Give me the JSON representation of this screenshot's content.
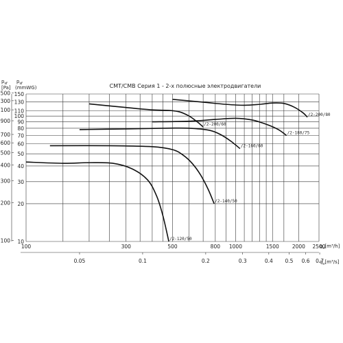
{
  "chart_data": {
    "type": "line",
    "title": "CMT/CMB  Серия 1 - 2-х полюсные электродвигатели",
    "ylabel_pa": "p",
    "ylabel_pa_sub": "sf",
    "ylabel_pa_unit": "[Pa]",
    "ylabel_mm": "p",
    "ylabel_mm_sub": "sf",
    "ylabel_mm_unit": "(mmWG)",
    "xlabel_m3h": "q",
    "xlabel_m3h_sub": "v",
    "xlabel_m3h_unit": "[m³/h]",
    "xlabel_m3s": "q",
    "xlabel_m3s_sub": "v",
    "xlabel_m3s_unit": "[m³/s]",
    "x_scale": "log",
    "xlim": [
      100,
      2500
    ],
    "x_ticks_m3h": [
      "100",
      "300",
      "500",
      "800",
      "1000",
      "1500",
      "2000",
      "2500"
    ],
    "x_ticks_m3s": [
      "0.05",
      "0.1",
      "0.2",
      "0.3",
      "0.4",
      "0.5",
      "0.6",
      "0.7"
    ],
    "y_ticks_pa": [
      "100",
      "200",
      "300",
      "400",
      "500",
      "600",
      "700",
      "900",
      "1100",
      "1300",
      "1500"
    ],
    "y_ticks_mm": [
      "10",
      "20",
      "30",
      "40",
      "50",
      "60",
      "70",
      "80",
      "90",
      "100",
      "110",
      "130",
      "150"
    ],
    "grid": true,
    "series": [
      {
        "name": "/2-120/50",
        "x": [
          100,
          150,
          200,
          260,
          320,
          380,
          420,
          450,
          480
        ],
        "y": [
          43,
          42,
          42.5,
          42,
          38,
          31,
          23,
          16,
          10
        ]
      },
      {
        "name": "/2-140/50",
        "x": [
          130,
          250,
          400,
          500,
          560,
          620,
          680,
          740,
          790
        ],
        "y": [
          58,
          58,
          57,
          54,
          49,
          42,
          34,
          26,
          20
        ]
      },
      {
        "name": "/2-160/60",
        "x": [
          180,
          300,
          450,
          600,
          750,
          850,
          950,
          1050
        ],
        "y": [
          78,
          79,
          80,
          80,
          77,
          71,
          63,
          55
        ]
      },
      {
        "name": "/2-180/75",
        "x": [
          400,
          600,
          800,
          1000,
          1200,
          1400,
          1600,
          1750
        ],
        "y": [
          90,
          91,
          94,
          96,
          93,
          86,
          78,
          70
        ]
      },
      {
        "name": "/2-200/60",
        "x": [
          200,
          300,
          400,
          480,
          540,
          600,
          650,
          700
        ],
        "y": [
          125,
          117,
          112,
          111,
          108,
          100,
          91,
          82
        ]
      },
      {
        "name": "/2-200/80",
        "x": [
          500,
          700,
          900,
          1100,
          1300,
          1500,
          1700,
          1900,
          2100,
          2200
        ],
        "y": [
          136,
          129,
          124,
          122,
          124,
          127,
          126,
          118,
          106,
          98
        ]
      }
    ]
  }
}
